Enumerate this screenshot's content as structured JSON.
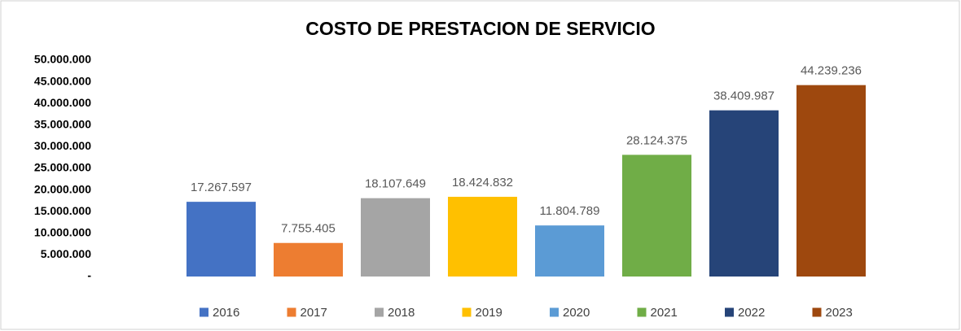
{
  "chart_data": {
    "type": "bar",
    "title": "COSTO DE PRESTACION DE SERVICIO",
    "categories": [
      null
    ],
    "series": [
      {
        "name": "2016",
        "color": "#4472c4",
        "values": [
          17267597
        ],
        "value_labels": [
          "17.267.597"
        ]
      },
      {
        "name": "2017",
        "color": "#ed7d31",
        "values": [
          7755405
        ],
        "value_labels": [
          "7.755.405"
        ]
      },
      {
        "name": "2018",
        "color": "#a5a5a5",
        "values": [
          18107649
        ],
        "value_labels": [
          "18.107.649"
        ]
      },
      {
        "name": "2019",
        "color": "#ffc000",
        "values": [
          18424832
        ],
        "value_labels": [
          "18.424.832"
        ]
      },
      {
        "name": "2020",
        "color": "#5b9bd5",
        "values": [
          11804789
        ],
        "value_labels": [
          "11.804.789"
        ]
      },
      {
        "name": "2021",
        "color": "#70ad47",
        "values": [
          28124375
        ],
        "value_labels": [
          "28.124.375"
        ]
      },
      {
        "name": "2022",
        "color": "#264478",
        "values": [
          38409987
        ],
        "value_labels": [
          "38.409.987"
        ]
      },
      {
        "name": "2023",
        "color": "#9e480e",
        "values": [
          44239236
        ],
        "value_labels": [
          "44.239.236"
        ]
      }
    ],
    "ylim": [
      0,
      50000000
    ],
    "yticks": [
      {
        "value": 0,
        "label": "-"
      },
      {
        "value": 5000000,
        "label": "5.000.000"
      },
      {
        "value": 10000000,
        "label": "10.000.000"
      },
      {
        "value": 15000000,
        "label": "15.000.000"
      },
      {
        "value": 20000000,
        "label": "20.000.000"
      },
      {
        "value": 25000000,
        "label": "25.000.000"
      },
      {
        "value": 30000000,
        "label": "30.000.000"
      },
      {
        "value": 35000000,
        "label": "35.000.000"
      },
      {
        "value": 40000000,
        "label": "40.000.000"
      },
      {
        "value": 45000000,
        "label": "45.000.000"
      },
      {
        "value": 50000000,
        "label": "50.000.000"
      }
    ],
    "grid": false,
    "legend": "bottom"
  }
}
